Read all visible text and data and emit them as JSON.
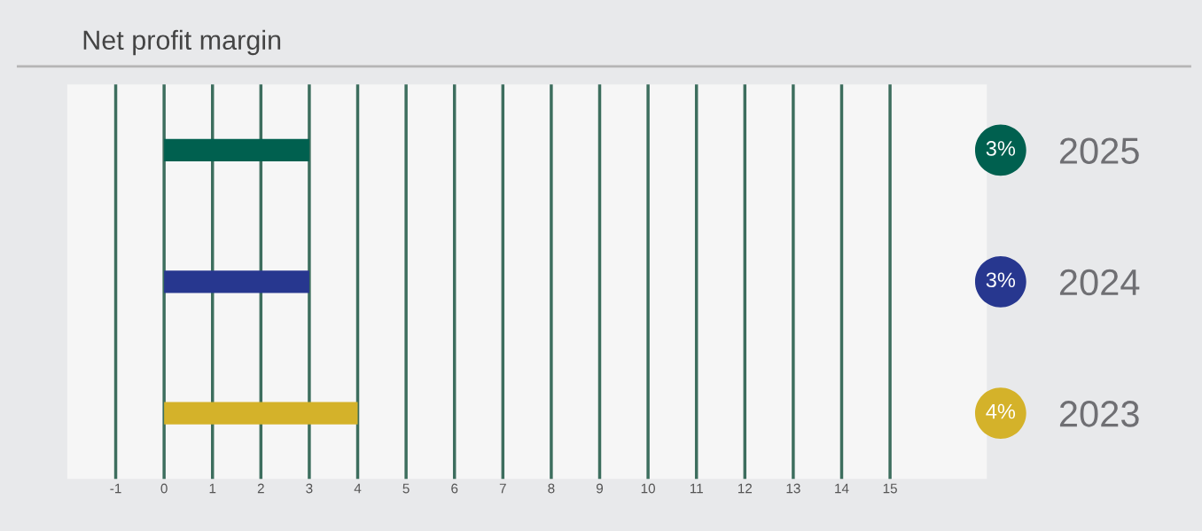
{
  "chart_data": {
    "type": "bar",
    "orientation": "horizontal",
    "title": "Net profit margin",
    "categories": [
      "2025",
      "2024",
      "2023"
    ],
    "values": [
      3,
      3,
      4
    ],
    "colors": [
      "#00604f",
      "#27378f",
      "#d4b22a"
    ],
    "value_labels": [
      "3%",
      "3%",
      "4%"
    ],
    "xlim": [
      -2,
      17
    ],
    "xticks": [
      -1,
      0,
      1,
      2,
      3,
      4,
      5,
      6,
      7,
      8,
      9,
      10,
      11,
      12,
      13,
      14,
      15
    ],
    "grid": "x"
  }
}
